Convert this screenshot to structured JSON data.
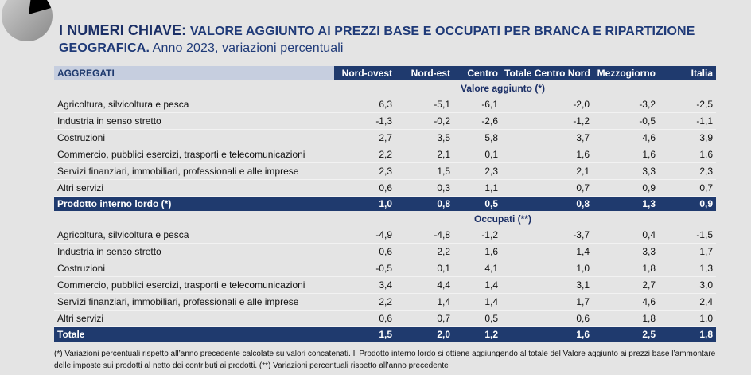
{
  "header": {
    "title_bold": "I NUMERI CHIAVE:",
    "title_rest": "VALORE AGGIUNTO AI PREZZI BASE E OCCUPATI PER BRANCA E RIPARTIZIONE",
    "title_line2_bold": "GEOGRAFICA.",
    "subtitle": "Anno 2023, variazioni percentuali"
  },
  "table": {
    "columns": [
      "AGGREGATI",
      "Nord-ovest",
      "Nord-est",
      "Centro",
      "Totale Centro Nord",
      "Mezzogiorno",
      "Italia"
    ],
    "sections": [
      {
        "title": "Valore aggiunto (*)",
        "rows": [
          {
            "label": "Agricoltura, silvicoltura e pesca",
            "values": [
              "6,3",
              "-5,1",
              "-6,1",
              "-2,0",
              "-3,2",
              "-2,5"
            ]
          },
          {
            "label": "Industria in senso stretto",
            "values": [
              "-1,3",
              "-0,2",
              "-2,6",
              "-1,2",
              "-0,5",
              "-1,1"
            ]
          },
          {
            "label": "Costruzioni",
            "values": [
              "2,7",
              "3,5",
              "5,8",
              "3,7",
              "4,6",
              "3,9"
            ]
          },
          {
            "label": "Commercio, pubblici esercizi, trasporti e telecomunicazioni",
            "values": [
              "2,2",
              "2,1",
              "0,1",
              "1,6",
              "1,6",
              "1,6"
            ]
          },
          {
            "label": "Servizi finanziari, immobiliari, professionali e alle imprese",
            "values": [
              "2,3",
              "1,5",
              "2,3",
              "2,1",
              "3,3",
              "2,3"
            ]
          },
          {
            "label": "Altri servizi",
            "values": [
              "0,6",
              "0,3",
              "1,1",
              "0,7",
              "0,9",
              "0,7"
            ]
          }
        ],
        "total": {
          "label": "Prodotto interno lordo (*)",
          "values": [
            "1,0",
            "0,8",
            "0,5",
            "0,8",
            "1,3",
            "0,9"
          ]
        }
      },
      {
        "title": "Occupati (**)",
        "rows": [
          {
            "label": "Agricoltura, silvicoltura e pesca",
            "values": [
              "-4,9",
              "-4,8",
              "-1,2",
              "-3,7",
              "0,4",
              "-1,5"
            ]
          },
          {
            "label": "Industria in senso stretto",
            "values": [
              "0,6",
              "2,2",
              "1,6",
              "1,4",
              "3,3",
              "1,7"
            ]
          },
          {
            "label": "Costruzioni",
            "values": [
              "-0,5",
              "0,1",
              "4,1",
              "1,0",
              "1,8",
              "1,3"
            ]
          },
          {
            "label": "Commercio, pubblici esercizi, trasporti e telecomunicazioni",
            "values": [
              "3,4",
              "4,4",
              "1,4",
              "3,1",
              "2,7",
              "3,0"
            ]
          },
          {
            "label": "Servizi finanziari, immobiliari, professionali e alle imprese",
            "values": [
              "2,2",
              "1,4",
              "1,4",
              "1,7",
              "4,6",
              "2,4"
            ]
          },
          {
            "label": "Altri servizi",
            "values": [
              "0,6",
              "0,7",
              "0,5",
              "0,6",
              "1,8",
              "1,0"
            ]
          }
        ],
        "total": {
          "label": "Totale",
          "values": [
            "1,5",
            "2,0",
            "1,2",
            "1,6",
            "2,5",
            "1,8"
          ]
        }
      }
    ]
  },
  "footnotes": [
    "(*) Variazioni percentuali rispetto all’anno precedente calcolate su valori concatenati. Il Prodotto interno lordo si ottiene aggiungendo al totale del Valore aggiunto ai prezzi base l’ammontare",
    "delle imposte sui prodotti al netto dei contributi ai prodotti.  (**) Variazioni percentuali rispetto all’anno precedente"
  ]
}
